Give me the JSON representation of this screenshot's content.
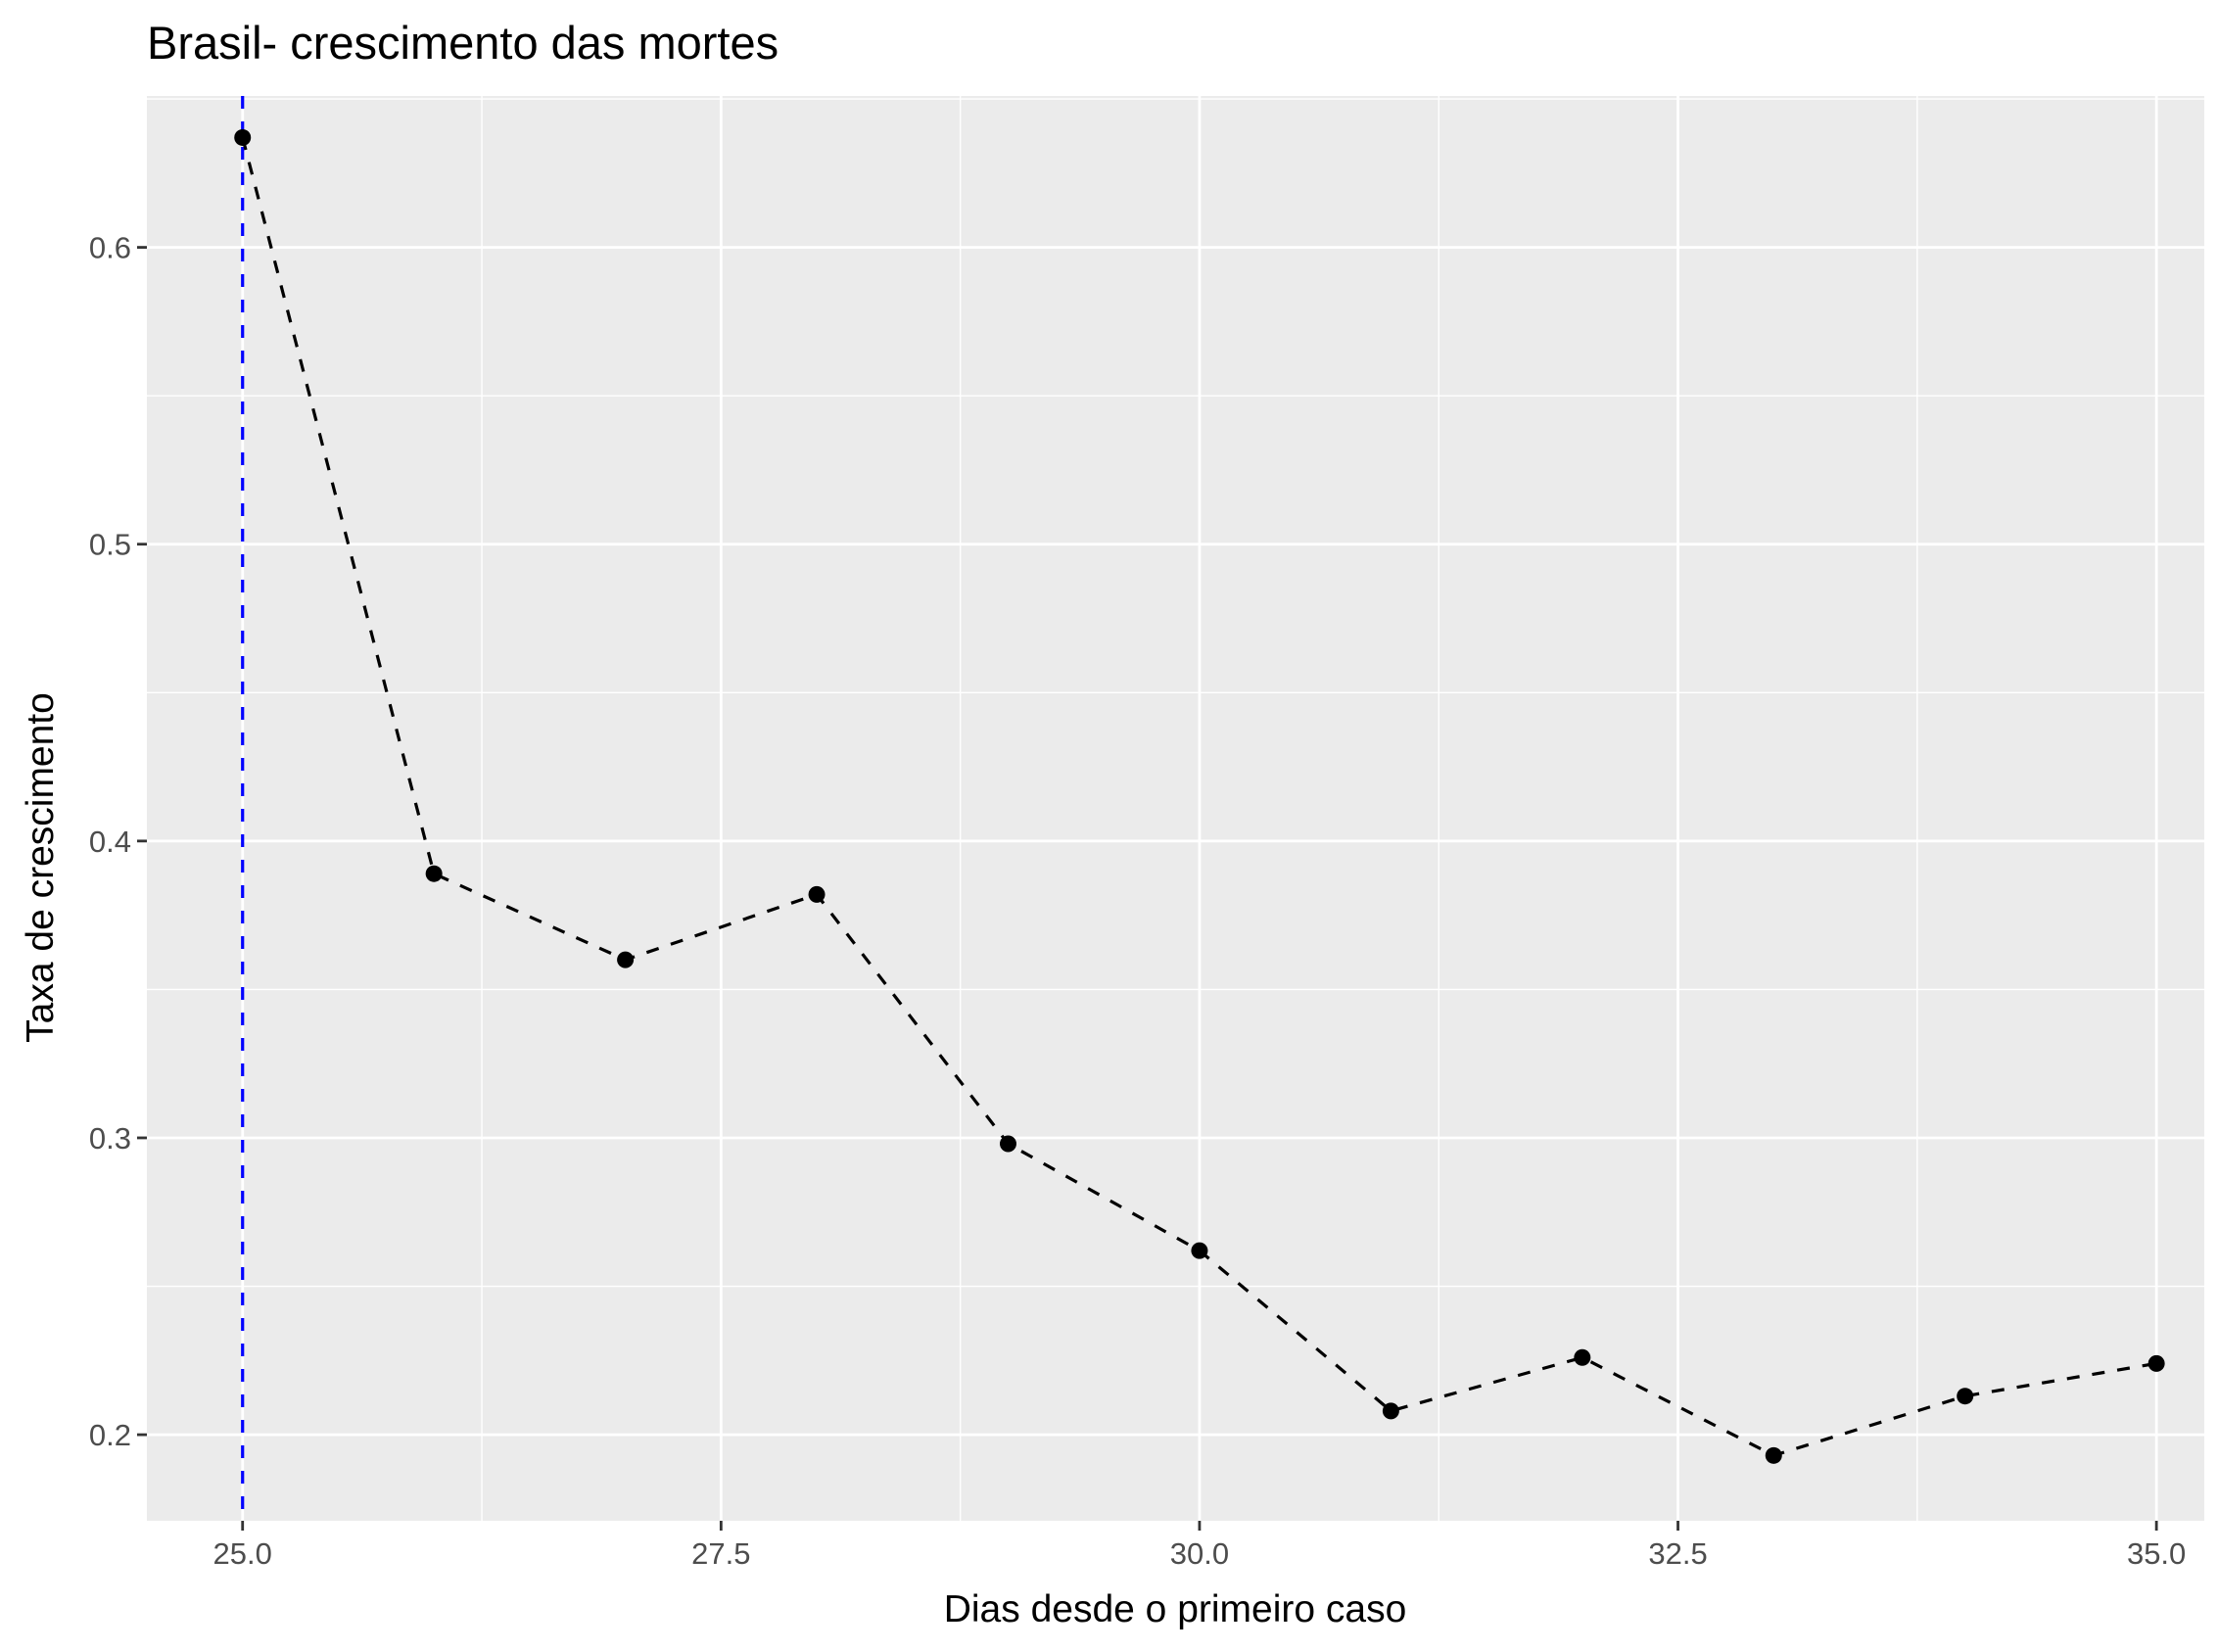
{
  "chart_data": {
    "type": "line",
    "title": "Brasil- crescimento das mortes",
    "xlabel": "Dias desde o primeiro caso",
    "ylabel": "Taxa de crescimento",
    "xlim": [
      24.5,
      35.25
    ],
    "ylim": [
      0.171,
      0.651
    ],
    "x_ticks": [
      25.0,
      27.5,
      30.0,
      32.5,
      35.0
    ],
    "x_tick_labels": [
      "25.0",
      "27.5",
      "30.0",
      "32.5",
      "35.0"
    ],
    "y_ticks": [
      0.2,
      0.3,
      0.4,
      0.5,
      0.6
    ],
    "y_tick_labels": [
      "0.2",
      "0.3",
      "0.4",
      "0.5",
      "0.6"
    ],
    "grid": true,
    "series": [
      {
        "x": [
          25,
          26,
          27,
          28,
          29,
          30,
          31,
          32,
          33,
          34,
          35
        ],
        "values": [
          0.637,
          0.389,
          0.36,
          0.382,
          0.298,
          0.262,
          0.208,
          0.226,
          0.193,
          0.213,
          0.224
        ],
        "line_style": "dashed",
        "color": "#000000"
      }
    ],
    "vertical_line": {
      "x": 25,
      "line_style": "dashed",
      "color": "#0000ff"
    }
  }
}
